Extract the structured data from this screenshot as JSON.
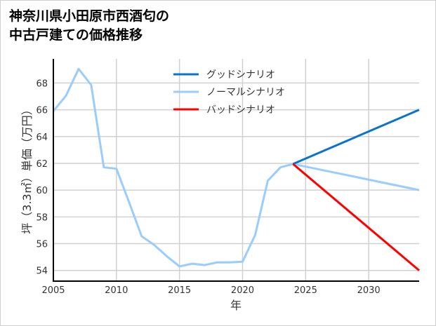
{
  "title_lines": [
    "神奈川県小田原市西酒匂の",
    "中古戸建ての価格推移"
  ],
  "chart_data": {
    "type": "line",
    "title": "神奈川県小田原市西酒匂の中古戸建ての価格推移",
    "xlabel": "年",
    "ylabel": "坪（3.3㎡）単価（万円）",
    "xlim": [
      2005,
      2034
    ],
    "ylim": [
      53.2,
      69.8
    ],
    "xticks": [
      2005,
      2010,
      2015,
      2020,
      2025,
      2030
    ],
    "yticks": [
      54,
      56,
      58,
      60,
      62,
      64,
      66,
      68
    ],
    "grid": true,
    "legend_position": "top-center",
    "series": [
      {
        "name": "グッドシナリオ",
        "color": "#0a74cc",
        "x": [
          2024,
          2034
        ],
        "y": [
          61.95,
          66.0
        ]
      },
      {
        "name": "ノーマルシナリオ",
        "color": "#99ccff",
        "x": [
          2005,
          2006,
          2007,
          2008,
          2009,
          2010,
          2011,
          2012,
          2013,
          2014,
          2015,
          2016,
          2017,
          2018,
          2019,
          2020,
          2021,
          2022,
          2023,
          2024,
          2034
        ],
        "y": [
          65.9,
          67.05,
          69.05,
          67.85,
          61.7,
          61.6,
          59.1,
          56.55,
          55.9,
          55.05,
          54.3,
          54.5,
          54.4,
          54.6,
          54.6,
          54.65,
          56.65,
          60.7,
          61.7,
          61.95,
          60.0
        ]
      },
      {
        "name": "バッドシナリオ",
        "color": "#ff0000",
        "x": [
          2024,
          2034
        ],
        "y": [
          61.95,
          54.0
        ]
      }
    ]
  }
}
